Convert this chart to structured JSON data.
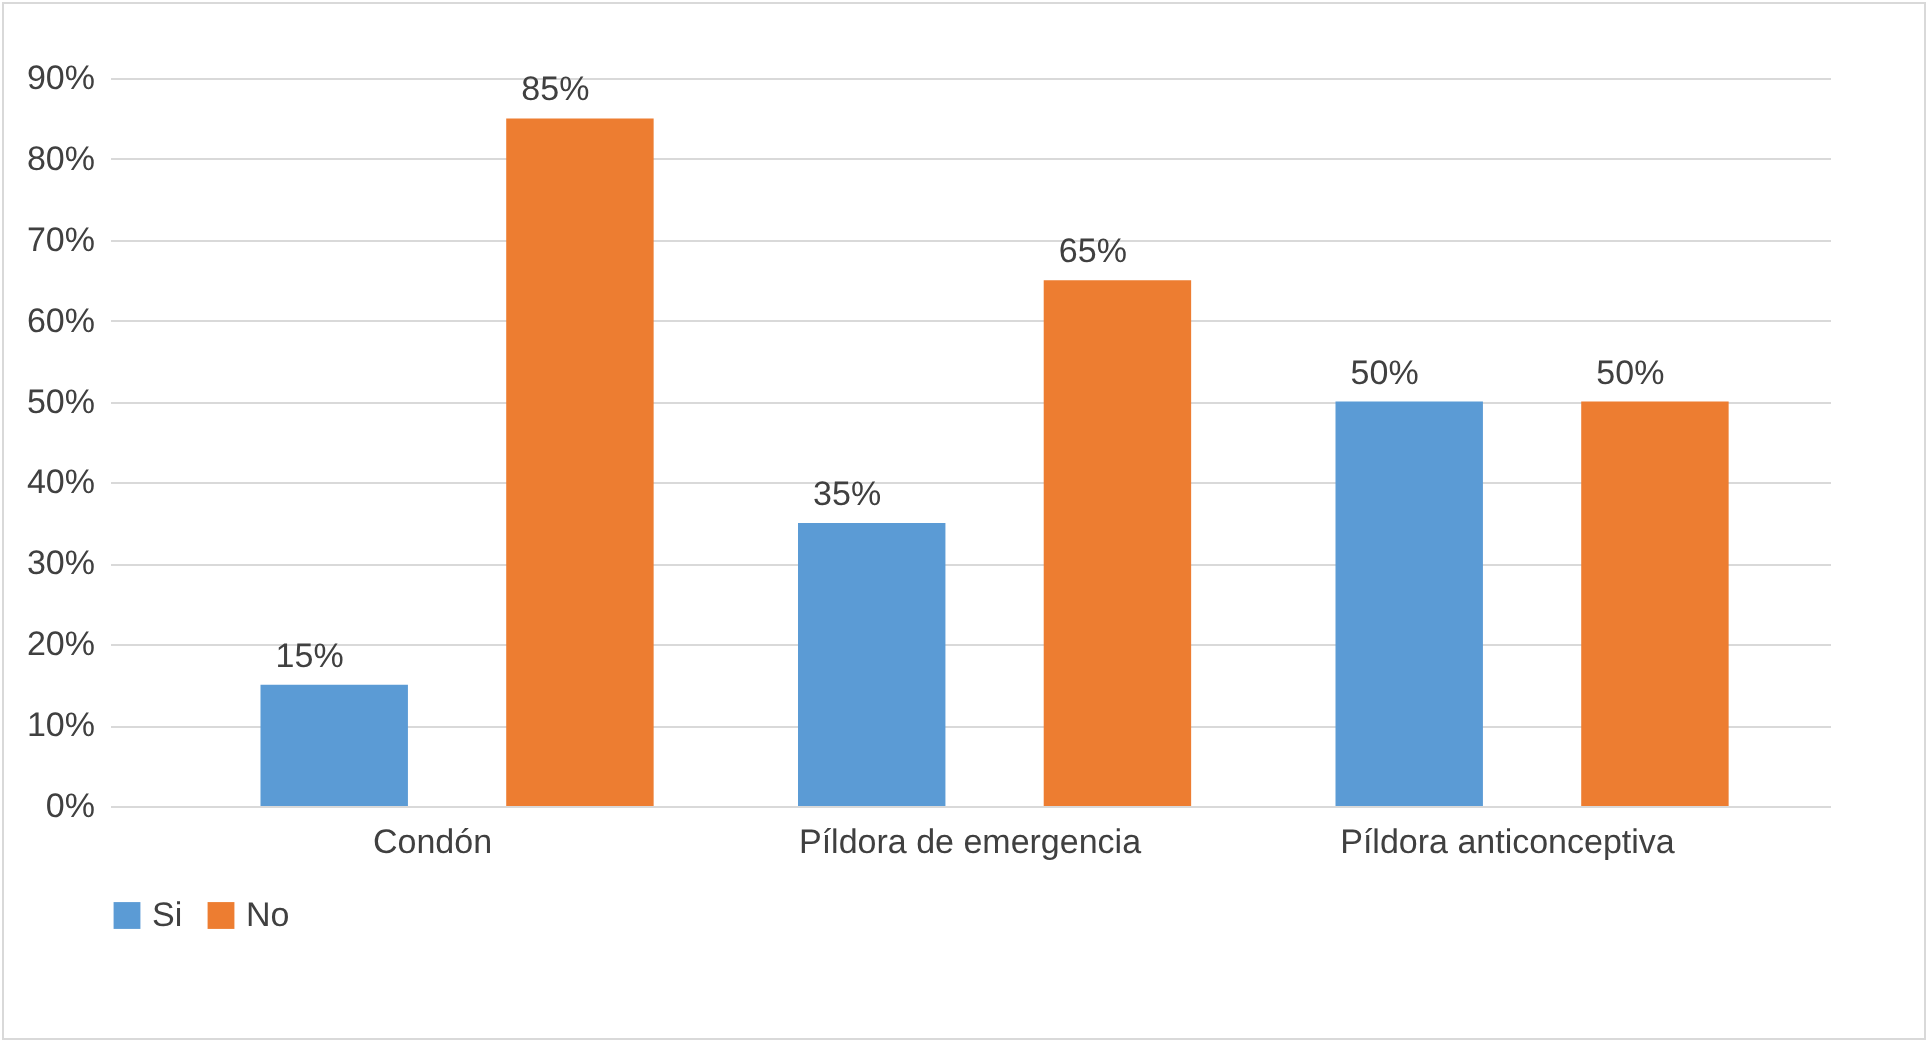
{
  "chart_data": {
    "type": "bar",
    "categories": [
      "Condón",
      "Píldora de emergencia",
      "Píldora anticonceptiva"
    ],
    "series": [
      {
        "name": "Si",
        "color": "#5b9bd5",
        "values": [
          15,
          35,
          50
        ],
        "value_labels": [
          "15%",
          "35%",
          "50%"
        ]
      },
      {
        "name": "No",
        "color": "#ed7d31",
        "values": [
          85,
          65,
          50
        ],
        "value_labels": [
          "85%",
          "65%",
          "50%"
        ]
      }
    ],
    "ylim": [
      0,
      90
    ],
    "yticks": [
      {
        "value": 0,
        "label": "0%"
      },
      {
        "value": 10,
        "label": "10%"
      },
      {
        "value": 20,
        "label": "20%"
      },
      {
        "value": 30,
        "label": "30%"
      },
      {
        "value": 40,
        "label": "40%"
      },
      {
        "value": 50,
        "label": "50%"
      },
      {
        "value": 60,
        "label": "60%"
      },
      {
        "value": 70,
        "label": "70%"
      },
      {
        "value": 80,
        "label": "80%"
      },
      {
        "value": 90,
        "label": "90%"
      }
    ],
    "grid": "y",
    "legend": "bottom"
  }
}
